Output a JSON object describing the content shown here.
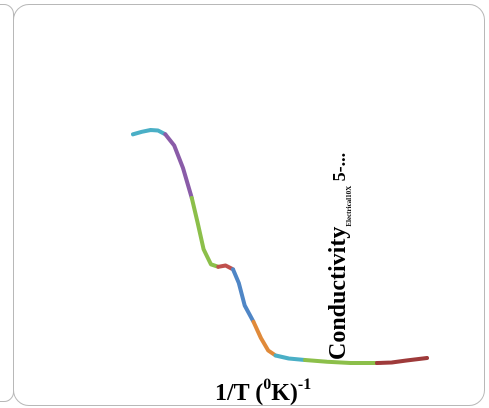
{
  "chart_data": {
    "type": "line",
    "xlabel": "1/T (",
    "xlabel_sup1": "0",
    "xlabel_mid": "K)",
    "xlabel_sup2": "-1",
    "ylabel": "Conductivity",
    "ylabel_sub": "Electrical10X",
    "ylabel_tail": " 5-...",
    "grid": false,
    "legend": "none",
    "series": [
      {
        "segments": [
          {
            "color": "#4aafc6",
            "x": [
              0.0,
              0.03,
              0.06,
              0.085,
              0.11
            ],
            "y": [
              0.915,
              0.925,
              0.932,
              0.93,
              0.915
            ]
          },
          {
            "color": "#8a5ca8",
            "x": [
              0.11,
              0.14,
              0.17,
              0.2
            ],
            "y": [
              0.915,
              0.87,
              0.78,
              0.66
            ]
          },
          {
            "color": "#8cbf4a",
            "x": [
              0.2,
              0.22,
              0.24,
              0.265,
              0.29
            ],
            "y": [
              0.66,
              0.56,
              0.455,
              0.395,
              0.385
            ]
          },
          {
            "color": "#c0504d",
            "x": [
              0.29,
              0.315,
              0.34
            ],
            "y": [
              0.385,
              0.39,
              0.375
            ]
          },
          {
            "color": "#4f86c6",
            "x": [
              0.34,
              0.36,
              0.38,
              0.41
            ],
            "y": [
              0.375,
              0.32,
              0.23,
              0.165
            ]
          },
          {
            "color": "#e08a3a",
            "x": [
              0.41,
              0.435,
              0.46,
              0.485
            ],
            "y": [
              0.165,
              0.1,
              0.05,
              0.03
            ]
          },
          {
            "color": "#4aafc6",
            "x": [
              0.485,
              0.53,
              0.585
            ],
            "y": [
              0.03,
              0.018,
              0.012
            ]
          },
          {
            "color": "#8cbf4a",
            "x": [
              0.585,
              0.66,
              0.74,
              0.83
            ],
            "y": [
              0.012,
              0.005,
              0.0,
              0.0
            ]
          },
          {
            "color": "#9e3a3a",
            "x": [
              0.83,
              0.88,
              0.93,
              1.0
            ],
            "y": [
              0.0,
              0.002,
              0.01,
              0.02
            ]
          }
        ]
      }
    ]
  }
}
